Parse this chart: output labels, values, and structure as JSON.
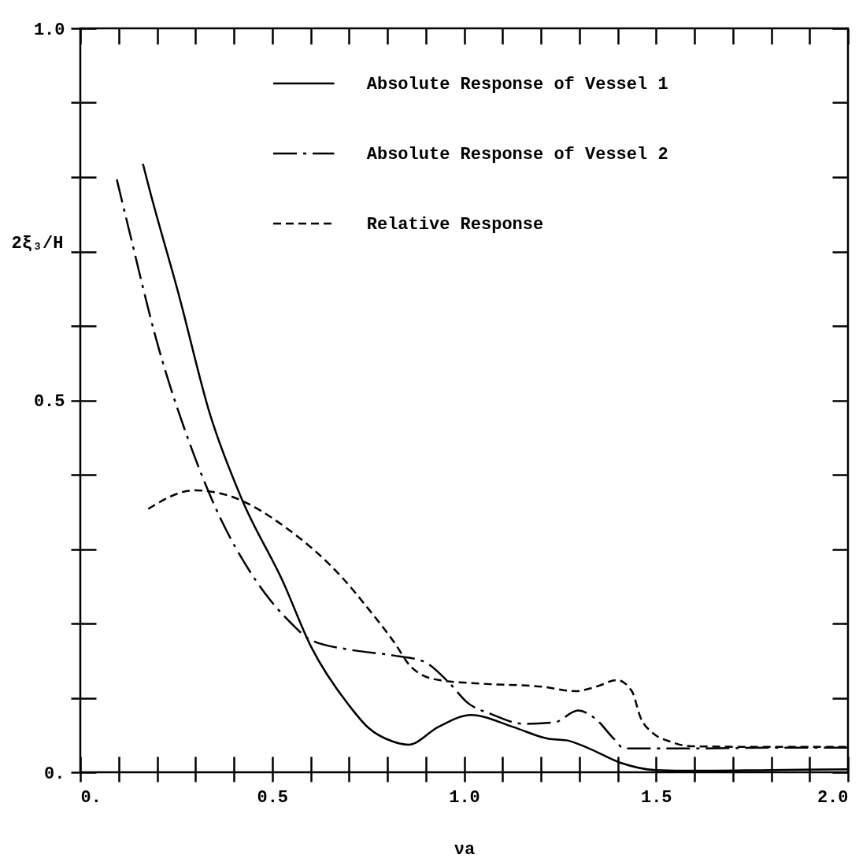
{
  "chart_data": {
    "type": "line",
    "xlabel": "νa",
    "ylabel": "2ξ₃/H",
    "xlim": [
      0,
      2
    ],
    "ylim": [
      0,
      1
    ],
    "xticks": [
      {
        "value": 0,
        "label": "0."
      },
      {
        "value": 0.1,
        "label": null
      },
      {
        "value": 0.2,
        "label": null
      },
      {
        "value": 0.3,
        "label": null
      },
      {
        "value": 0.4,
        "label": null
      },
      0.5,
      {
        "value": 0.6,
        "label": null
      },
      {
        "value": 0.7,
        "label": null
      },
      {
        "value": 0.8,
        "label": null
      },
      {
        "value": 0.9,
        "label": null
      },
      {
        "value": 1,
        "label": "1.0"
      },
      {
        "value": 1.1,
        "label": null
      },
      {
        "value": 1.2,
        "label": null
      },
      {
        "value": 1.3,
        "label": null
      },
      {
        "value": 1.4,
        "label": null
      },
      1.5,
      {
        "value": 1.6,
        "label": null
      },
      {
        "value": 1.7,
        "label": null
      },
      {
        "value": 1.8,
        "label": null
      },
      {
        "value": 1.9,
        "label": null
      },
      {
        "value": 2,
        "label": "2.0"
      }
    ],
    "yticks": [
      {
        "value": 0,
        "label": "0."
      },
      {
        "value": 0.1,
        "label": null
      },
      {
        "value": 0.2,
        "label": null
      },
      {
        "value": 0.3,
        "label": null
      },
      {
        "value": 0.4,
        "label": null
      },
      0.5,
      {
        "value": 0.6,
        "label": null
      },
      {
        "value": 0.7,
        "label": null
      },
      {
        "value": 0.8,
        "label": null
      },
      {
        "value": 0.9,
        "label": null
      },
      {
        "value": 1,
        "label": "1.0"
      }
    ],
    "legend": "top right",
    "marker": "none",
    "series": [
      {
        "name": "Absolute Response of Vessel 1",
        "color": "#000000",
        "line_style": "solid",
        "x": [
          0.163,
          0.18,
          0.256,
          0.338,
          0.42,
          0.529,
          0.6,
          0.7,
          0.75,
          0.816,
          0.855,
          0.933,
          1.018,
          1.127,
          1.22,
          1.266,
          1.321,
          1.406,
          1.499,
          1.6,
          1.8,
          2.0
        ],
        "values": [
          0.818,
          0.784,
          0.643,
          0.481,
          0.368,
          0.255,
          0.17,
          0.09,
          0.06,
          0.041,
          0.037,
          0.061,
          0.077,
          0.061,
          0.045,
          0.043,
          0.033,
          0.013,
          0.003,
          0.002,
          0.003,
          0.004
        ]
      },
      {
        "name": "Absolute Response of Vessel 2",
        "color": "#000000",
        "line_style": "dashdot",
        "x": [
          0.095,
          0.126,
          0.201,
          0.29,
          0.345,
          0.461,
          0.55,
          0.6,
          0.7,
          0.816,
          0.894,
          0.956,
          1.01,
          1.072,
          1.157,
          1.235,
          1.297,
          1.344,
          1.39,
          1.417,
          1.6,
          1.8,
          2.0
        ],
        "values": [
          0.797,
          0.731,
          0.576,
          0.435,
          0.364,
          0.255,
          0.2,
          0.178,
          0.165,
          0.157,
          0.149,
          0.123,
          0.093,
          0.078,
          0.065,
          0.067,
          0.083,
          0.071,
          0.045,
          0.032,
          0.032,
          0.033,
          0.033
        ]
      },
      {
        "name": "Relative Response",
        "color": "#000000",
        "line_style": "dashed",
        "x": [
          0.177,
          0.297,
          0.379,
          0.543,
          0.687,
          0.75,
          0.816,
          0.863,
          0.933,
          1.049,
          1.204,
          1.29,
          1.344,
          1.398,
          1.437,
          1.46,
          1.491,
          1.538,
          1.592,
          1.8,
          2.0
        ],
        "values": [
          0.354,
          0.379,
          0.373,
          0.326,
          0.259,
          0.22,
          0.176,
          0.141,
          0.124,
          0.119,
          0.115,
          0.109,
          0.115,
          0.124,
          0.109,
          0.073,
          0.053,
          0.041,
          0.035,
          0.034,
          0.034
        ]
      }
    ]
  }
}
